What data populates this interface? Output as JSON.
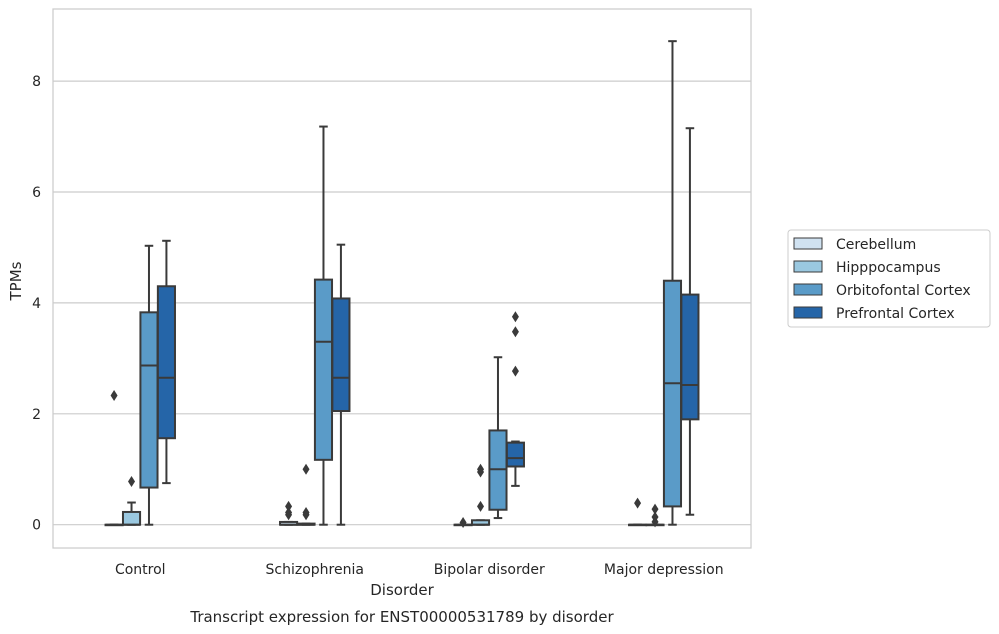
{
  "chart_data": {
    "type": "box",
    "caption": "Transcript expression for ENST00000531789 by disorder",
    "xlabel": "Disorder",
    "ylabel": "TPMs",
    "ylim": [
      -0.42,
      9.3
    ],
    "yticks": [
      0,
      2,
      4,
      6,
      8
    ],
    "grid": "horizontal",
    "legend_position": "right",
    "categories": [
      "Control",
      "Schizophrenia",
      "Bipolar disorder",
      "Major depression"
    ],
    "series": [
      {
        "name": "Cerebellum",
        "color": "#d0e2f1",
        "boxes": [
          {
            "whisker_low": 0,
            "q1": 0,
            "median": 0,
            "q3": 0,
            "whisker_high": 0,
            "outliers": [
              2.33
            ]
          },
          {
            "whisker_low": 0,
            "q1": 0,
            "median": 0,
            "q3": 0.05,
            "whisker_high": 0.05,
            "outliers": [
              0.18,
              0.22,
              0.33
            ]
          },
          {
            "whisker_low": 0,
            "q1": 0,
            "median": 0,
            "q3": 0,
            "whisker_high": 0,
            "outliers": [
              0.04
            ]
          },
          {
            "whisker_low": 0,
            "q1": 0,
            "median": 0,
            "q3": 0,
            "whisker_high": 0,
            "outliers": [
              0.39
            ]
          }
        ]
      },
      {
        "name": "Hipppocampus",
        "color": "#9ac8e0",
        "boxes": [
          {
            "whisker_low": 0,
            "q1": 0,
            "median": 0,
            "q3": 0.23,
            "whisker_high": 0.4,
            "outliers": [
              0.78
            ]
          },
          {
            "whisker_low": 0,
            "q1": 0,
            "median": 0,
            "q3": 0.02,
            "whisker_high": 0.02,
            "outliers": [
              0.18,
              0.22,
              1.0
            ]
          },
          {
            "whisker_low": 0,
            "q1": 0,
            "median": 0,
            "q3": 0.08,
            "whisker_high": 0.08,
            "outliers": [
              0.33,
              0.95,
              1.0
            ]
          },
          {
            "whisker_low": 0,
            "q1": 0,
            "median": 0,
            "q3": 0,
            "whisker_high": 0,
            "outliers": [
              0.05,
              0.14,
              0.28
            ]
          }
        ]
      },
      {
        "name": "Orbitofontal Cortex",
        "color": "#5a9bc8",
        "boxes": [
          {
            "whisker_low": 0,
            "q1": 0.67,
            "median": 2.87,
            "q3": 3.83,
            "whisker_high": 5.03,
            "outliers": []
          },
          {
            "whisker_low": 0,
            "q1": 1.17,
            "median": 3.3,
            "q3": 4.42,
            "whisker_high": 7.18,
            "outliers": []
          },
          {
            "whisker_low": 0.12,
            "q1": 0.27,
            "median": 1.0,
            "q3": 1.7,
            "whisker_high": 3.02,
            "outliers": []
          },
          {
            "whisker_low": 0,
            "q1": 0.33,
            "median": 2.55,
            "q3": 4.4,
            "whisker_high": 8.72,
            "outliers": []
          }
        ]
      },
      {
        "name": "Prefrontal Cortex",
        "color": "#2565a8",
        "boxes": [
          {
            "whisker_low": 0.75,
            "q1": 1.56,
            "median": 2.65,
            "q3": 4.3,
            "whisker_high": 5.12,
            "outliers": []
          },
          {
            "whisker_low": 0,
            "q1": 2.05,
            "median": 2.65,
            "q3": 4.08,
            "whisker_high": 5.05,
            "outliers": []
          },
          {
            "whisker_low": 0.7,
            "q1": 1.05,
            "median": 1.2,
            "q3": 1.48,
            "whisker_high": 1.5,
            "outliers": [
              2.77,
              3.48,
              3.75
            ]
          },
          {
            "whisker_low": 0.18,
            "q1": 1.9,
            "median": 2.52,
            "q3": 4.15,
            "whisker_high": 7.15,
            "outliers": []
          }
        ]
      }
    ]
  }
}
